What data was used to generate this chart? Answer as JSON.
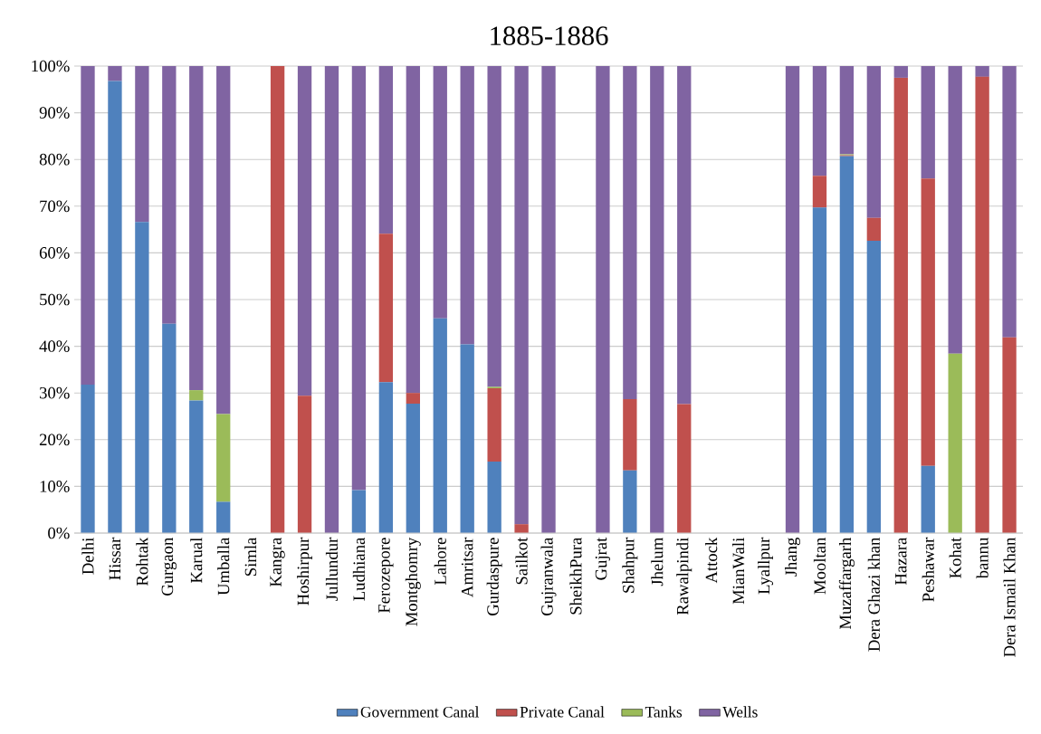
{
  "chart_data": {
    "type": "bar",
    "stacked": true,
    "title": "1885-1886",
    "categories": [
      "Delhi",
      "Hissar",
      "Rohtak",
      "Gurgaon",
      "Karual",
      "Umballa",
      "Simla",
      "Kangra",
      "Hoshirpur",
      "Jullundur",
      "Ludhiana",
      "Ferozepore",
      "Montghomry",
      "Lahore",
      "Amritsar",
      "Gurdaspure",
      "Sailkot",
      "Gujranwala",
      "SheikhPura",
      "Gujrat",
      "Shahpur",
      "Jhelum",
      "Rawalpindi",
      "Attock",
      "MianWali",
      "Lyallpur",
      "Jhang",
      "Mooltan",
      "Muzaffargarh",
      "Dera Ghazi khan",
      "Hazara",
      "Peshawar",
      "Kohat",
      "bannu",
      "Dera Ismail Khan"
    ],
    "series": [
      {
        "name": "Government Canal",
        "color": "#4f81bd",
        "values": [
          31.8,
          96.8,
          66.6,
          44.8,
          28.4,
          6.7,
          null,
          0,
          0,
          0,
          9.2,
          32.3,
          27.7,
          46,
          40.4,
          15.3,
          0,
          0,
          null,
          0,
          13.4,
          0,
          0,
          null,
          null,
          null,
          0,
          69.7,
          80.7,
          62.6,
          0,
          14.4,
          0,
          0,
          0
        ]
      },
      {
        "name": "Private Canal",
        "color": "#c0504d",
        "values": [
          0,
          0,
          0,
          0,
          0,
          0,
          null,
          100,
          29.4,
          0,
          0,
          31.8,
          2.3,
          0,
          0,
          15.7,
          1.9,
          0,
          null,
          0,
          15.3,
          0,
          27.6,
          null,
          null,
          null,
          0,
          6.8,
          0.2,
          4.9,
          97.5,
          61.5,
          0,
          97.7,
          41.9
        ]
      },
      {
        "name": "Tanks",
        "color": "#9bbb59",
        "values": [
          0,
          0,
          0,
          0,
          2.2,
          18.8,
          null,
          0,
          0,
          0,
          0,
          0,
          0,
          0,
          0,
          0.3,
          0,
          0,
          null,
          0,
          0,
          0,
          0,
          null,
          null,
          null,
          0,
          0,
          0.2,
          0,
          0,
          0,
          38.4,
          0,
          0
        ]
      },
      {
        "name": "Wells",
        "color": "#8064a2",
        "values": [
          68.2,
          3.2,
          33.4,
          55.2,
          69.4,
          74.5,
          null,
          0,
          70.6,
          100,
          90.8,
          35.9,
          70,
          54,
          59.6,
          68.7,
          98.1,
          100,
          null,
          100,
          71.3,
          100,
          72.4,
          null,
          null,
          null,
          100,
          23.5,
          18.9,
          32.5,
          2.5,
          24.1,
          61.6,
          2.3,
          58.1
        ]
      }
    ],
    "ylim": [
      0,
      100
    ],
    "yticks": [
      {
        "value": 0,
        "label": "0%"
      },
      {
        "value": 10,
        "label": "10%"
      },
      {
        "value": 20,
        "label": "20%"
      },
      {
        "value": 30,
        "label": "30%"
      },
      {
        "value": 40,
        "label": "40%"
      },
      {
        "value": 50,
        "label": "50%"
      },
      {
        "value": 60,
        "label": "60%"
      },
      {
        "value": 70,
        "label": "70%"
      },
      {
        "value": 80,
        "label": "80%"
      },
      {
        "value": 90,
        "label": "90%"
      },
      {
        "value": 100,
        "label": "100%"
      }
    ],
    "grid": "y",
    "legend": "bottom"
  }
}
